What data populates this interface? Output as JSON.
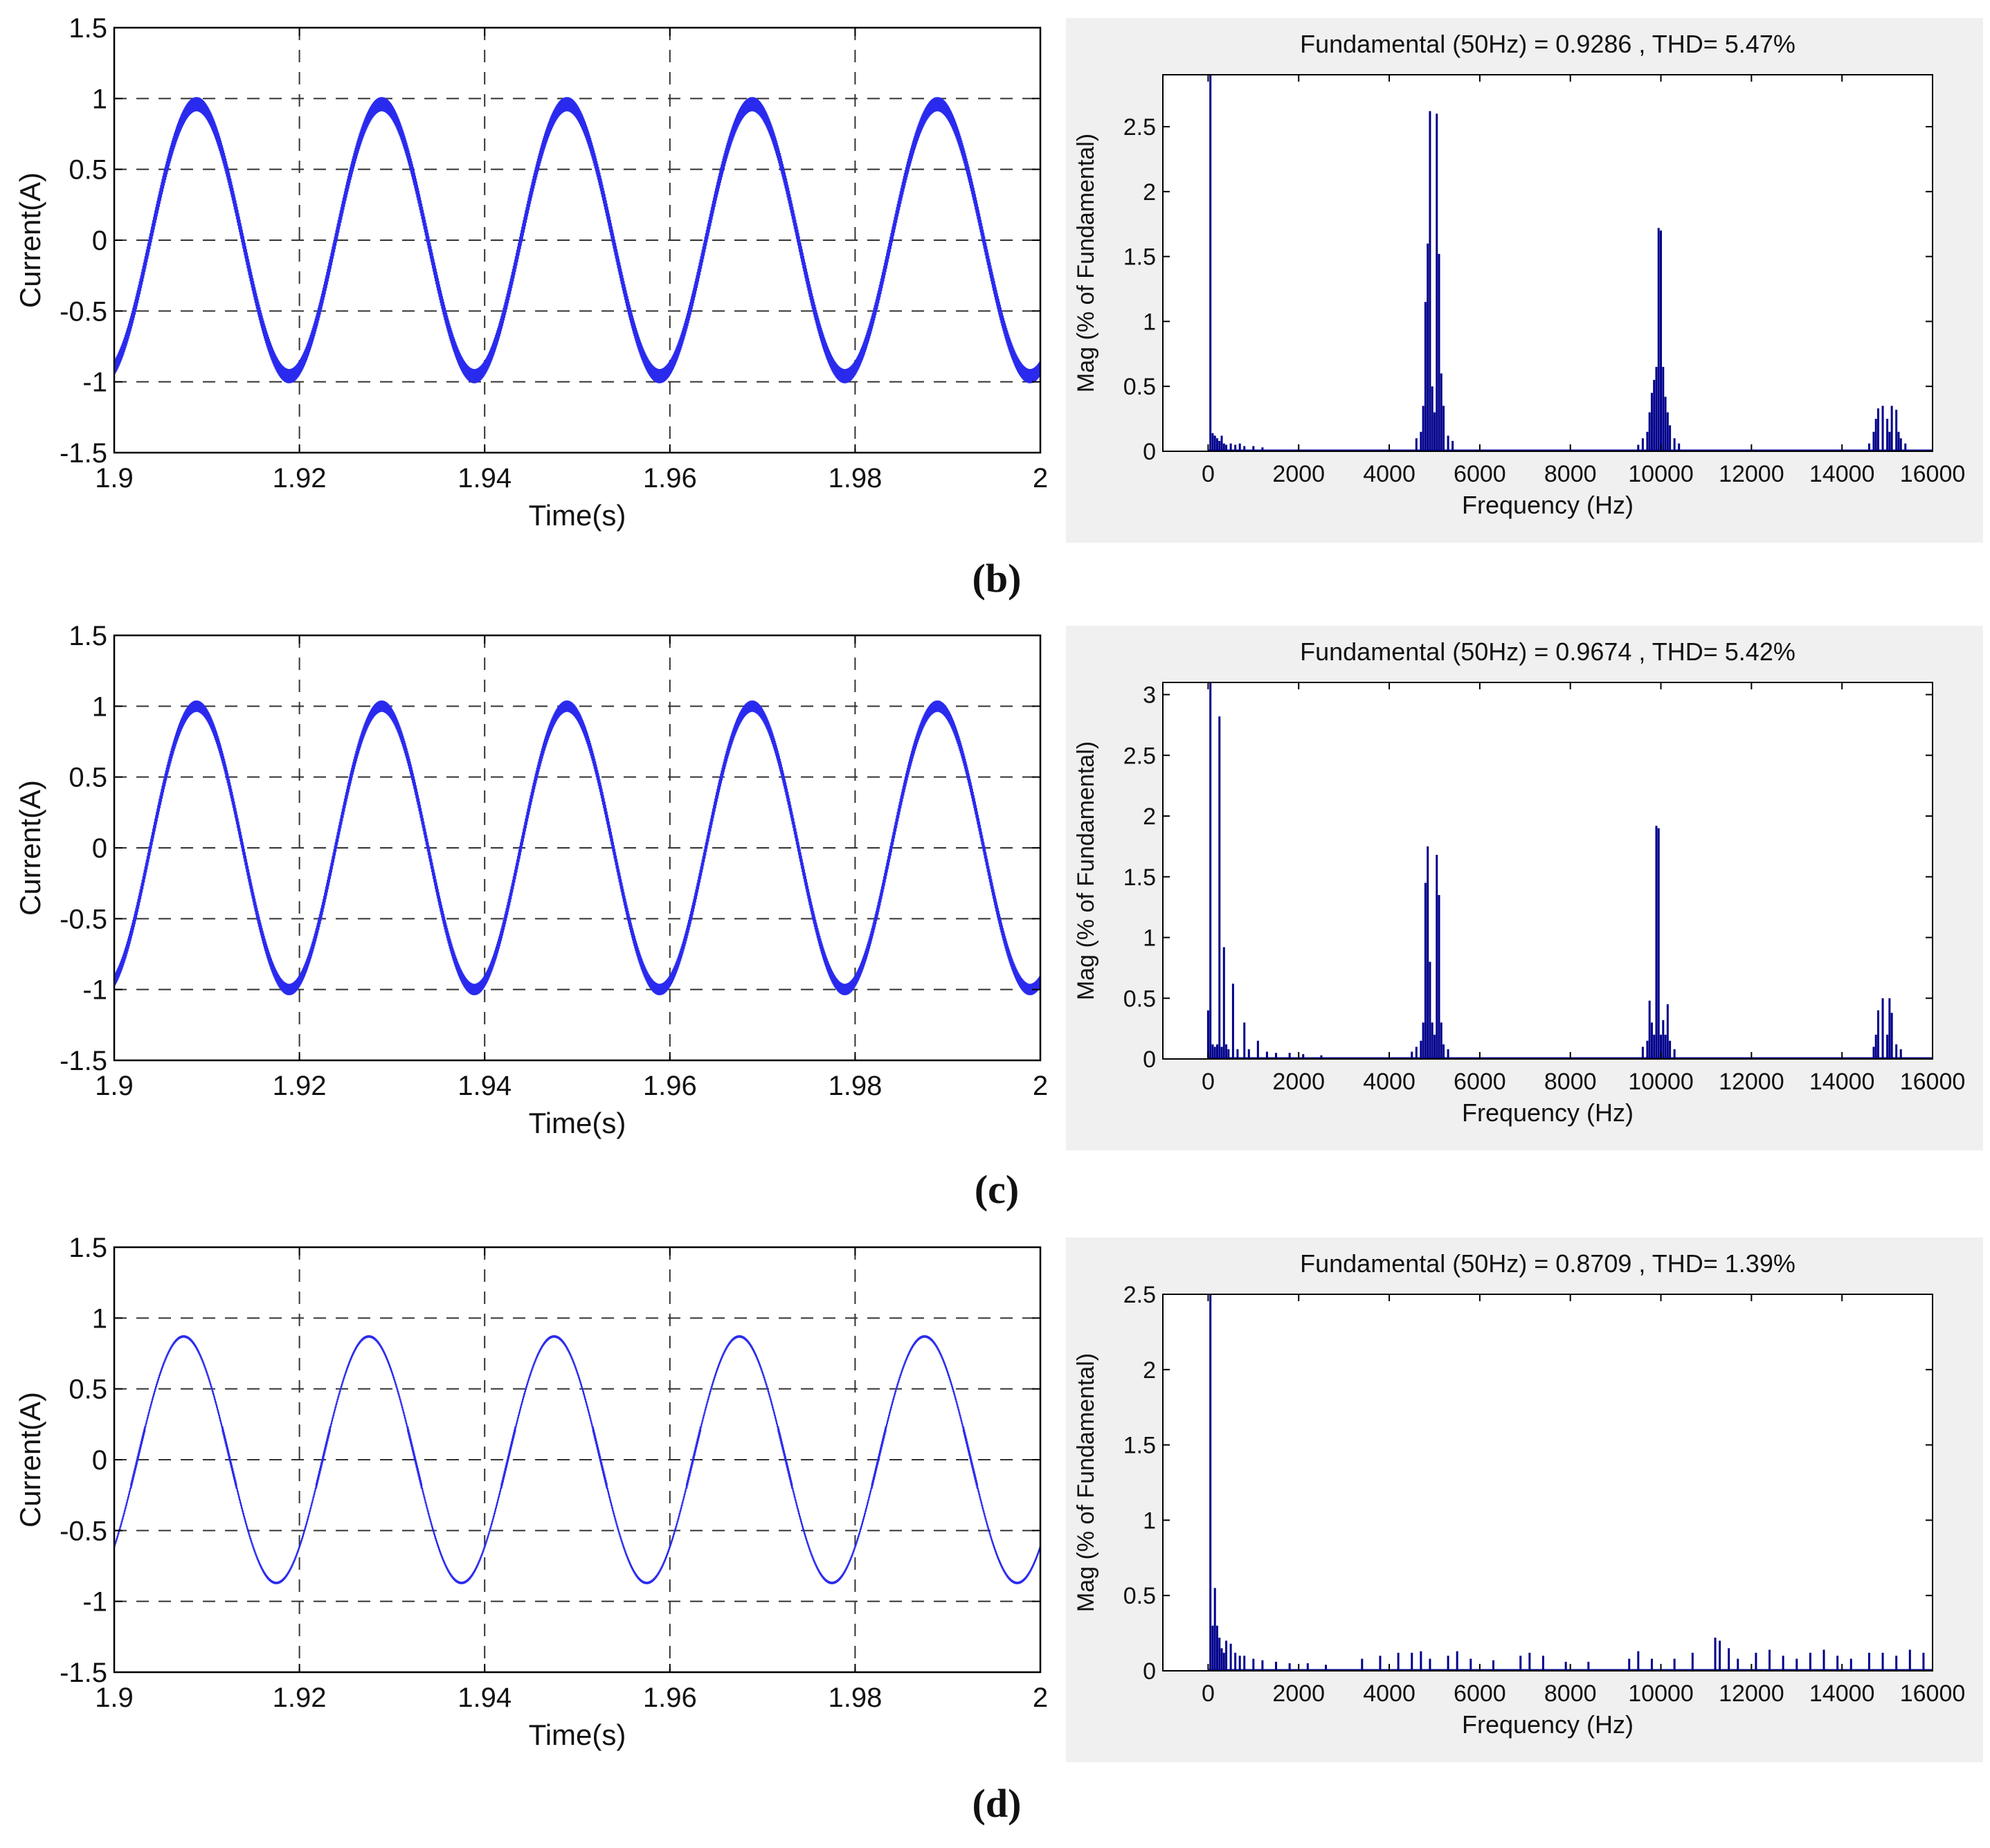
{
  "figure": {
    "panels": [
      {
        "id": "b",
        "label": "(b)"
      },
      {
        "id": "c",
        "label": "(c)"
      },
      {
        "id": "d",
        "label": "(d)"
      }
    ]
  },
  "chart_data": [
    {
      "panel": "b",
      "kind": "waveform",
      "type": "line",
      "title": "",
      "xlabel": "Time(s)",
      "ylabel": "Current(A)",
      "xlim": [
        1.9,
        2.0
      ],
      "ylim": [
        -1.5,
        1.5
      ],
      "xticks": [
        1.9,
        1.92,
        1.94,
        1.96,
        1.98,
        2.0
      ],
      "xtick_labels": [
        "1.9",
        "1.92",
        "1.94",
        "1.96",
        "1.98",
        "2"
      ],
      "yticks": [
        -1.5,
        -1,
        -0.5,
        0,
        0.5,
        1,
        1.5
      ],
      "ytick_labels": [
        "-1.5",
        "-1",
        "-0.5",
        "0",
        "0.5",
        "1",
        "1.5"
      ],
      "grid": "dashed",
      "signal": {
        "amplitude": 0.96,
        "frequency_hz": 50,
        "phase_deg": -70,
        "ripple": 0.05,
        "peak_times_s": [
          1.9085,
          1.9285,
          1.9485,
          1.9685,
          1.9885
        ]
      },
      "line_color": "#2a2aee"
    },
    {
      "panel": "b",
      "kind": "spectrum",
      "type": "bar",
      "title": "Fundamental (50Hz) = 0.9286 , THD= 5.47%",
      "xlabel": "Frequency (Hz)",
      "ylabel": "Mag (% of Fundamental)",
      "xlim": [
        -1000,
        16000
      ],
      "ylim": [
        0,
        2.9
      ],
      "xticks": [
        0,
        2000,
        4000,
        6000,
        8000,
        10000,
        12000,
        14000,
        16000
      ],
      "xtick_labels": [
        "0",
        "2000",
        "4000",
        "6000",
        "8000",
        "10000",
        "12000",
        "14000",
        "16000"
      ],
      "yticks": [
        0,
        0.5,
        1,
        1.5,
        2,
        2.5
      ],
      "ytick_labels": [
        "0",
        "0.5",
        "1",
        "1.5",
        "2",
        "2.5"
      ],
      "bar_color": "#00008b",
      "bars": [
        [
          50,
          2.9
        ],
        [
          100,
          0.14
        ],
        [
          150,
          0.12
        ],
        [
          200,
          0.1
        ],
        [
          250,
          0.08
        ],
        [
          300,
          0.12
        ],
        [
          350,
          0.06
        ],
        [
          400,
          0.05
        ],
        [
          500,
          0.06
        ],
        [
          600,
          0.05
        ],
        [
          700,
          0.06
        ],
        [
          800,
          0.04
        ],
        [
          1000,
          0.04
        ],
        [
          1200,
          0.03
        ],
        [
          4600,
          0.1
        ],
        [
          4700,
          0.15
        ],
        [
          4750,
          0.35
        ],
        [
          4800,
          1.15
        ],
        [
          4850,
          1.6
        ],
        [
          4900,
          2.62
        ],
        [
          4950,
          0.5
        ],
        [
          5000,
          0.3
        ],
        [
          5050,
          2.6
        ],
        [
          5100,
          1.52
        ],
        [
          5150,
          0.6
        ],
        [
          5200,
          0.35
        ],
        [
          5300,
          0.12
        ],
        [
          5400,
          0.08
        ],
        [
          9500,
          0.05
        ],
        [
          9600,
          0.1
        ],
        [
          9700,
          0.15
        ],
        [
          9750,
          0.3
        ],
        [
          9800,
          0.45
        ],
        [
          9850,
          0.55
        ],
        [
          9900,
          0.65
        ],
        [
          9950,
          1.72
        ],
        [
          10000,
          1.7
        ],
        [
          10050,
          0.65
        ],
        [
          10100,
          0.42
        ],
        [
          10150,
          0.3
        ],
        [
          10200,
          0.2
        ],
        [
          10300,
          0.1
        ],
        [
          10400,
          0.06
        ],
        [
          14600,
          0.06
        ],
        [
          14700,
          0.15
        ],
        [
          14750,
          0.25
        ],
        [
          14800,
          0.33
        ],
        [
          14900,
          0.35
        ],
        [
          15000,
          0.25
        ],
        [
          15050,
          0.15
        ],
        [
          15100,
          0.35
        ],
        [
          15200,
          0.32
        ],
        [
          15250,
          0.15
        ],
        [
          15300,
          0.1
        ],
        [
          15400,
          0.06
        ]
      ]
    },
    {
      "panel": "c",
      "kind": "waveform",
      "type": "line",
      "title": "",
      "xlabel": "Time(s)",
      "ylabel": "Current(A)",
      "xlim": [
        1.9,
        2.0
      ],
      "ylim": [
        -1.5,
        1.5
      ],
      "xticks": [
        1.9,
        1.92,
        1.94,
        1.96,
        1.98,
        2.0
      ],
      "xtick_labels": [
        "1.9",
        "1.92",
        "1.94",
        "1.96",
        "1.98",
        "2"
      ],
      "yticks": [
        -1.5,
        -1,
        -0.5,
        0,
        0.5,
        1,
        1.5
      ],
      "ytick_labels": [
        "-1.5",
        "-1",
        "-0.5",
        "0",
        "0.5",
        "1",
        "1.5"
      ],
      "grid": "dashed",
      "signal": {
        "amplitude": 1.0,
        "frequency_hz": 50,
        "phase_deg": -70,
        "ripple": 0.04,
        "peak_times_s": [
          1.9085,
          1.9285,
          1.9485,
          1.9685,
          1.9885
        ]
      },
      "line_color": "#2a2aee"
    },
    {
      "panel": "c",
      "kind": "spectrum",
      "type": "bar",
      "title": "Fundamental (50Hz) = 0.9674 , THD= 5.42%",
      "xlabel": "Frequency (Hz)",
      "ylabel": "Mag (% of Fundamental)",
      "xlim": [
        -1000,
        16000
      ],
      "ylim": [
        0,
        3.1
      ],
      "xticks": [
        0,
        2000,
        4000,
        6000,
        8000,
        10000,
        12000,
        14000,
        16000
      ],
      "xtick_labels": [
        "0",
        "2000",
        "4000",
        "6000",
        "8000",
        "10000",
        "12000",
        "14000",
        "16000"
      ],
      "yticks": [
        0,
        0.5,
        1,
        1.5,
        2,
        2.5,
        3
      ],
      "ytick_labels": [
        "0",
        "0.5",
        "1",
        "1.5",
        "2",
        "2.5",
        "3"
      ],
      "bar_color": "#00008b",
      "bars": [
        [
          0,
          0.4
        ],
        [
          50,
          3.1
        ],
        [
          100,
          0.12
        ],
        [
          150,
          0.1
        ],
        [
          200,
          0.12
        ],
        [
          250,
          2.82
        ],
        [
          300,
          0.1
        ],
        [
          350,
          0.92
        ],
        [
          400,
          0.12
        ],
        [
          450,
          0.08
        ],
        [
          550,
          0.62
        ],
        [
          650,
          0.08
        ],
        [
          800,
          0.3
        ],
        [
          900,
          0.08
        ],
        [
          1100,
          0.15
        ],
        [
          1300,
          0.06
        ],
        [
          1500,
          0.05
        ],
        [
          1800,
          0.05
        ],
        [
          2100,
          0.04
        ],
        [
          2500,
          0.03
        ],
        [
          4500,
          0.06
        ],
        [
          4600,
          0.1
        ],
        [
          4700,
          0.15
        ],
        [
          4750,
          0.3
        ],
        [
          4800,
          1.45
        ],
        [
          4850,
          1.75
        ],
        [
          4900,
          0.8
        ],
        [
          4950,
          0.3
        ],
        [
          5000,
          0.2
        ],
        [
          5050,
          1.68
        ],
        [
          5100,
          1.35
        ],
        [
          5150,
          0.3
        ],
        [
          5200,
          0.12
        ],
        [
          5300,
          0.08
        ],
        [
          9600,
          0.1
        ],
        [
          9700,
          0.15
        ],
        [
          9750,
          0.48
        ],
        [
          9800,
          0.3
        ],
        [
          9850,
          0.2
        ],
        [
          9900,
          1.92
        ],
        [
          9950,
          1.9
        ],
        [
          10000,
          0.2
        ],
        [
          10050,
          0.32
        ],
        [
          10100,
          0.2
        ],
        [
          10150,
          0.45
        ],
        [
          10200,
          0.15
        ],
        [
          10300,
          0.08
        ],
        [
          14700,
          0.1
        ],
        [
          14750,
          0.2
        ],
        [
          14800,
          0.4
        ],
        [
          14900,
          0.5
        ],
        [
          15000,
          0.2
        ],
        [
          15050,
          0.5
        ],
        [
          15100,
          0.38
        ],
        [
          15200,
          0.12
        ],
        [
          15300,
          0.08
        ]
      ]
    },
    {
      "panel": "d",
      "kind": "waveform",
      "type": "line",
      "title": "",
      "xlabel": "Time(s)",
      "ylabel": "Current(A)",
      "xlim": [
        1.9,
        2.0
      ],
      "ylim": [
        -1.5,
        1.5
      ],
      "xticks": [
        1.9,
        1.92,
        1.94,
        1.96,
        1.98,
        2.0
      ],
      "xtick_labels": [
        "1.9",
        "1.92",
        "1.94",
        "1.96",
        "1.98",
        "2"
      ],
      "yticks": [
        -1.5,
        -1,
        -0.5,
        0,
        0.5,
        1,
        1.5
      ],
      "ytick_labels": [
        "-1.5",
        "-1",
        "-0.5",
        "0",
        "0.5",
        "1",
        "1.5"
      ],
      "grid": "dashed",
      "signal": {
        "amplitude": 0.87,
        "frequency_hz": 50,
        "phase_deg": -45,
        "ripple": 0.008,
        "peak_times_s": [
          1.9075,
          1.9275,
          1.9475,
          1.9675,
          1.9875
        ]
      },
      "line_color": "#2a2aee"
    },
    {
      "panel": "d",
      "kind": "spectrum",
      "type": "bar",
      "title": "Fundamental (50Hz) = 0.8709 , THD= 1.39%",
      "xlabel": "Frequency (Hz)",
      "ylabel": "Mag (% of Fundamental)",
      "xlim": [
        -1000,
        16000
      ],
      "ylim": [
        0,
        2.5
      ],
      "xticks": [
        0,
        2000,
        4000,
        6000,
        8000,
        10000,
        12000,
        14000,
        16000
      ],
      "xtick_labels": [
        "0",
        "2000",
        "4000",
        "6000",
        "8000",
        "10000",
        "12000",
        "14000",
        "16000"
      ],
      "yticks": [
        0,
        0.5,
        1,
        1.5,
        2,
        2.5
      ],
      "ytick_labels": [
        "0",
        "0.5",
        "1",
        "1.5",
        "2",
        "2.5"
      ],
      "bar_color": "#00008b",
      "bars": [
        [
          50,
          2.5
        ],
        [
          100,
          0.3
        ],
        [
          150,
          0.55
        ],
        [
          200,
          0.3
        ],
        [
          250,
          0.22
        ],
        [
          300,
          0.15
        ],
        [
          350,
          0.12
        ],
        [
          400,
          0.2
        ],
        [
          500,
          0.18
        ],
        [
          600,
          0.12
        ],
        [
          700,
          0.1
        ],
        [
          800,
          0.1
        ],
        [
          1000,
          0.08
        ],
        [
          1200,
          0.07
        ],
        [
          1500,
          0.06
        ],
        [
          1800,
          0.05
        ],
        [
          2200,
          0.05
        ],
        [
          2600,
          0.04
        ],
        [
          3400,
          0.08
        ],
        [
          3800,
          0.1
        ],
        [
          4200,
          0.12
        ],
        [
          4500,
          0.12
        ],
        [
          4700,
          0.13
        ],
        [
          4900,
          0.08
        ],
        [
          5300,
          0.1
        ],
        [
          5500,
          0.13
        ],
        [
          5800,
          0.08
        ],
        [
          6300,
          0.07
        ],
        [
          6900,
          0.1
        ],
        [
          7100,
          0.12
        ],
        [
          7400,
          0.1
        ],
        [
          7900,
          0.06
        ],
        [
          8400,
          0.06
        ],
        [
          9300,
          0.08
        ],
        [
          9500,
          0.13
        ],
        [
          9800,
          0.08
        ],
        [
          10300,
          0.08
        ],
        [
          10700,
          0.12
        ],
        [
          11200,
          0.22
        ],
        [
          11300,
          0.2
        ],
        [
          11500,
          0.15
        ],
        [
          11700,
          0.08
        ],
        [
          12100,
          0.12
        ],
        [
          12400,
          0.14
        ],
        [
          12700,
          0.1
        ],
        [
          13000,
          0.08
        ],
        [
          13300,
          0.12
        ],
        [
          13600,
          0.14
        ],
        [
          13900,
          0.1
        ],
        [
          14200,
          0.08
        ],
        [
          14600,
          0.12
        ],
        [
          14900,
          0.12
        ],
        [
          15200,
          0.1
        ],
        [
          15500,
          0.14
        ],
        [
          15800,
          0.12
        ]
      ]
    }
  ]
}
